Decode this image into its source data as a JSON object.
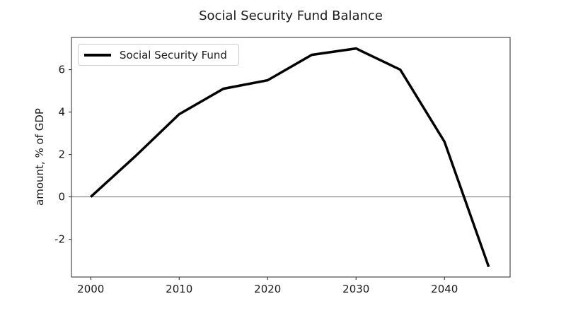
{
  "title": "Social Security Fund Balance",
  "chart_data": {
    "type": "line",
    "title": "Social Security Fund Balance",
    "xlabel": "",
    "ylabel": "amount, % of GDP",
    "x": [
      2000,
      2005,
      2010,
      2015,
      2020,
      2025,
      2030,
      2035,
      2040,
      2045
    ],
    "series": [
      {
        "name": "Social Security Fund",
        "values": [
          0.0,
          1.9,
          3.9,
          5.1,
          5.5,
          6.7,
          7.0,
          6.0,
          2.6,
          -3.3
        ],
        "color": "#000000",
        "line_width": 3.5
      }
    ],
    "xlim": [
      1997.82,
      2047.42
    ],
    "ylim": [
      -3.78,
      7.52
    ],
    "xticks": [
      2000,
      2010,
      2020,
      2030,
      2040
    ],
    "yticks": [
      -2,
      0,
      2,
      4,
      6
    ],
    "grid": false,
    "zero_line": true,
    "legend": {
      "position": "upper-left",
      "entries": [
        "Social Security Fund"
      ]
    },
    "colors": {
      "axis": "#262626",
      "tick_label": "#1a1a1a",
      "zero_line": "#737373",
      "background": "#ffffff"
    }
  }
}
